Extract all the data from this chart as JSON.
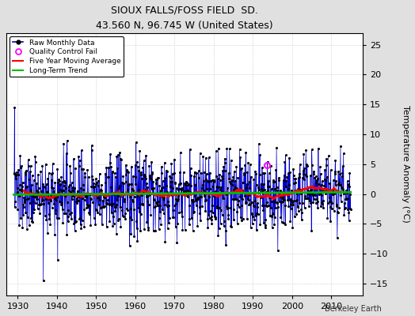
{
  "title": "SIOUX FALLS/FOSS FIELD  SD.",
  "subtitle": "43.560 N, 96.745 W (United States)",
  "ylabel": "Temperature Anomaly (°C)",
  "ylim": [
    -17,
    27
  ],
  "xlim": [
    1927,
    2018
  ],
  "yticks": [
    -15,
    -10,
    -5,
    0,
    5,
    10,
    15,
    20,
    25
  ],
  "xticks": [
    1930,
    1940,
    1950,
    1960,
    1970,
    1980,
    1990,
    2000,
    2010
  ],
  "bg_color": "#e0e0e0",
  "plot_bg_color": "#ffffff",
  "raw_line_color": "#0000cc",
  "raw_dot_color": "#000000",
  "moving_avg_color": "#ff0000",
  "trend_color": "#00bb00",
  "qc_fail_color": "#ff00ff",
  "watermark": "Berkeley Earth",
  "seed": 137,
  "start_year": 1929,
  "end_year": 2015,
  "n_months": 1032
}
